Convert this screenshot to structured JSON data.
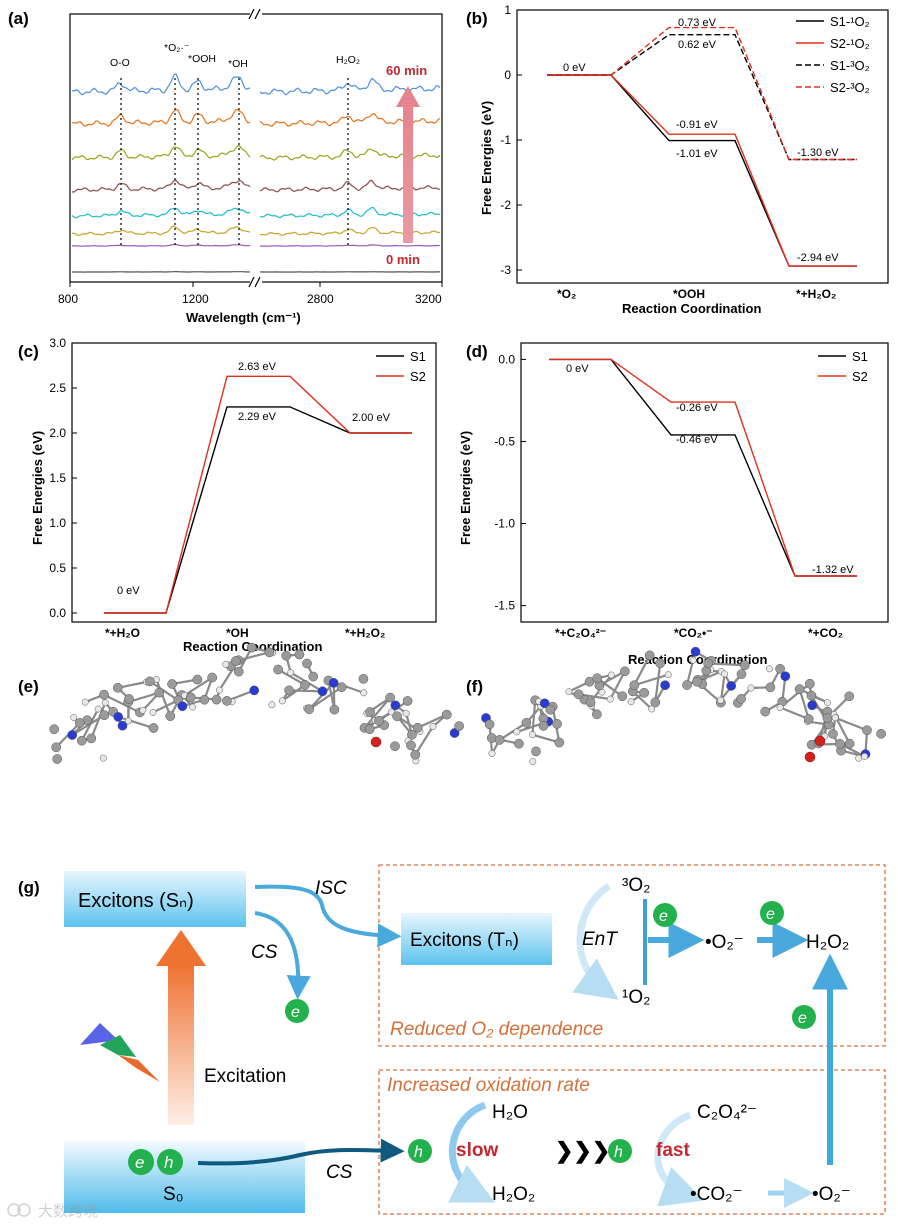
{
  "panels": {
    "a": {
      "label": "(a)",
      "xlabel": "Wavelength (cm⁻¹)",
      "xticks": [
        "800",
        "1200",
        "2800",
        "3200"
      ],
      "peaks": [
        "O-O",
        "*O₂·⁻",
        "*OOH",
        "*OH",
        "H₂O₂"
      ],
      "time_start": "0 min",
      "time_end": "60 min",
      "spectra_colors": [
        "#555555",
        "#9b59b6",
        "#c9a227",
        "#17becf",
        "#8c4a4a",
        "#9aa31a",
        "#e8731a",
        "#4a90d9"
      ]
    },
    "b": {
      "label": "(b)",
      "ylabel": "Free Energies (eV)",
      "xlabel": "Reaction Coordination",
      "yticks": [
        "1",
        "0",
        "-1",
        "-2",
        "-3"
      ],
      "steps": [
        "*O₂",
        "*OOH",
        "*+H₂O₂"
      ],
      "legend": [
        "S1-¹O₂",
        "S2-¹O₂",
        "S1-³O₂",
        "S2-³O₂"
      ],
      "values": [
        "0 eV",
        "0.73 eV",
        "0.62 eV",
        "-0.91 eV",
        "-1.01 eV",
        "-1.30 eV",
        "-2.94 eV"
      ]
    },
    "c": {
      "label": "(c)",
      "ylabel": "Free Energies (eV)",
      "xlabel": "Reaction Coordination",
      "yticks": [
        "3.0",
        "2.5",
        "2.0",
        "1.5",
        "1.0",
        "0.5",
        "0.0"
      ],
      "steps": [
        "*+H₂O",
        "*OH",
        "*+H₂O₂"
      ],
      "legend": [
        "S1",
        "S2"
      ],
      "values": [
        "0 eV",
        "2.63 eV",
        "2.29 eV",
        "2.00 eV"
      ]
    },
    "d": {
      "label": "(d)",
      "ylabel": "Free Energies (eV)",
      "xlabel": "Reaction Coordination",
      "yticks": [
        "0.0",
        "-0.5",
        "-1.0",
        "-1.5"
      ],
      "steps": [
        "*+C₂O₄²⁻",
        "*CO₂•⁻",
        "*+CO₂"
      ],
      "legend": [
        "S1",
        "S2"
      ],
      "values": [
        "0 eV",
        "-0.26 eV",
        "-0.46 eV",
        "-1.32 eV"
      ]
    },
    "e": {
      "label": "(e)"
    },
    "f": {
      "label": "(f)"
    },
    "g": {
      "label": "(g)",
      "excitons_sn": "Excitons (Sₙ)",
      "excitons_tn": "Excitons (Tₙ)",
      "isc": "ISC",
      "cs1": "CS",
      "cs2": "CS",
      "ent": "EnT",
      "triplet_o2": "³O₂",
      "singlet_o2": "¹O₂",
      "superoxide": "•O₂⁻",
      "superoxide2": "•O₂⁻",
      "h2o2": "H₂O₂",
      "h2o2_b": "H₂O₂",
      "h2o": "H₂O",
      "oxalate": "C₂O₄²⁻",
      "co2_radical": "•CO₂⁻",
      "excitation": "Excitation",
      "s0": "S₀",
      "electron": "e",
      "hole": "h",
      "slow": "slow",
      "fast": "fast",
      "reduced_o2": "Reduced O₂ dependence",
      "increased_rate": "Increased oxidation rate",
      "chevrons": "❯❯❯",
      "watermark": "大数跨境"
    }
  },
  "chart_data": [
    {
      "panel": "a",
      "type": "line",
      "title": "",
      "xlabel": "Wavelength (cm-1)",
      "ylabel": "",
      "x_ranges": [
        [
          800,
          1500
        ],
        [
          2500,
          3200
        ]
      ],
      "series_order": "bottom (0 min) to top (60 min)",
      "peak_positions": {
        "O-O": 950,
        "*O2-": 1110,
        "*OOH": 1220,
        "*OH": 1385,
        "H2O2": 2850
      }
    },
    {
      "panel": "b",
      "type": "line",
      "ylim": [
        -3.2,
        1.0
      ],
      "categories": [
        "*O2",
        "*OOH",
        "*+H2O2"
      ],
      "series": [
        {
          "name": "S1-1O2",
          "values": [
            0,
            -1.01,
            -2.94
          ]
        },
        {
          "name": "S2-1O2",
          "values": [
            0,
            -0.91,
            -2.94
          ]
        },
        {
          "name": "S1-3O2",
          "values": [
            0,
            0.62,
            -1.3
          ]
        },
        {
          "name": "S2-3O2",
          "values": [
            0,
            0.73,
            -1.3
          ]
        }
      ]
    },
    {
      "panel": "c",
      "type": "line",
      "ylim": [
        -0.1,
        3.0
      ],
      "categories": [
        "*+H2O",
        "*OH",
        "*+H2O2"
      ],
      "series": [
        {
          "name": "S1",
          "values": [
            0,
            2.29,
            2.0
          ]
        },
        {
          "name": "S2",
          "values": [
            0,
            2.63,
            2.0
          ]
        }
      ]
    },
    {
      "panel": "d",
      "type": "line",
      "ylim": [
        -1.6,
        0.1
      ],
      "categories": [
        "*+C2O4 2-",
        "*CO2 -",
        "*+CO2"
      ],
      "series": [
        {
          "name": "S1",
          "values": [
            0,
            -0.46,
            -1.32
          ]
        },
        {
          "name": "S2",
          "values": [
            0,
            -0.26,
            -1.32
          ]
        }
      ]
    }
  ]
}
